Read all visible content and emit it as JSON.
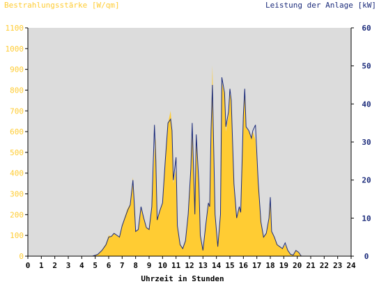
{
  "chart_data": {
    "type": "area",
    "left_axis_title": "Bestrahlungsstärke [W/qm]",
    "right_axis_title": "Leistung der Anlage [kW]",
    "xlabel": "Uhrzeit in Stunden",
    "xlim": [
      0,
      24
    ],
    "ylim_left": [
      0,
      1100
    ],
    "ylim_right": [
      0,
      60
    ],
    "x_ticks": [
      "0",
      "1",
      "2",
      "3",
      "4",
      "5",
      "6",
      "7",
      "8",
      "9",
      "10",
      "11",
      "12",
      "13",
      "14",
      "15",
      "16",
      "17",
      "18",
      "19",
      "20",
      "21",
      "22",
      "23",
      "24"
    ],
    "y_ticks_left": [
      "0",
      "100",
      "200",
      "300",
      "400",
      "500",
      "600",
      "700",
      "800",
      "900",
      "1000",
      "1100"
    ],
    "y_ticks_right": [
      "0",
      "10",
      "20",
      "30",
      "40",
      "50",
      "60"
    ],
    "grid": false,
    "colors": {
      "plot_background": "#dcdcdc",
      "irradiance_fill": "#ffcc33",
      "power_line": "#1a2a7a",
      "left_axis_text": "#ffcc33",
      "right_axis_text": "#1a2a7a",
      "axis": "#000000"
    },
    "series": [
      {
        "name": "Bestrahlungsstärke",
        "axis": "left",
        "style": "area",
        "x": [
          0,
          4.8,
          5.2,
          5.5,
          5.8,
          6.0,
          6.2,
          6.4,
          6.6,
          6.8,
          7.0,
          7.2,
          7.4,
          7.6,
          7.8,
          7.9,
          8.0,
          8.2,
          8.4,
          8.6,
          8.8,
          9.0,
          9.2,
          9.4,
          9.5,
          9.6,
          9.8,
          10.0,
          10.2,
          10.4,
          10.6,
          10.7,
          10.8,
          11.0,
          11.1,
          11.3,
          11.5,
          11.7,
          11.9,
          12.1,
          12.2,
          12.4,
          12.5,
          12.7,
          12.8,
          13.0,
          13.2,
          13.4,
          13.5,
          13.6,
          13.7,
          13.9,
          14.1,
          14.3,
          14.4,
          14.6,
          14.7,
          14.9,
          15.0,
          15.1,
          15.3,
          15.5,
          15.7,
          15.8,
          16.0,
          16.1,
          16.2,
          16.4,
          16.6,
          16.7,
          16.9,
          17.1,
          17.3,
          17.5,
          17.7,
          17.9,
          18.0,
          18.1,
          18.3,
          18.5,
          18.7,
          18.9,
          19.1,
          19.3,
          19.5,
          19.7,
          19.9,
          20.1,
          20.3,
          24
        ],
        "values": [
          0,
          0,
          10,
          30,
          60,
          100,
          95,
          110,
          100,
          90,
          150,
          190,
          230,
          250,
          380,
          260,
          120,
          130,
          230,
          180,
          140,
          130,
          240,
          500,
          570,
          180,
          220,
          260,
          460,
          640,
          700,
          610,
          350,
          420,
          150,
          60,
          40,
          80,
          200,
          420,
          600,
          200,
          560,
          350,
          100,
          30,
          150,
          260,
          240,
          600,
          920,
          200,
          50,
          200,
          840,
          780,
          600,
          680,
          780,
          760,
          350,
          180,
          240,
          210,
          680,
          800,
          620,
          600,
          570,
          600,
          560,
          360,
          170,
          90,
          110,
          180,
          270,
          120,
          90,
          60,
          45,
          35,
          55,
          25,
          10,
          5,
          30,
          20,
          0,
          0
        ]
      },
      {
        "name": "Leistung der Anlage",
        "axis": "right",
        "style": "line",
        "x": [
          0,
          4.8,
          5.2,
          5.5,
          5.8,
          6.0,
          6.2,
          6.4,
          6.6,
          6.8,
          7.0,
          7.2,
          7.4,
          7.6,
          7.8,
          7.9,
          8.0,
          8.2,
          8.4,
          8.6,
          8.8,
          9.0,
          9.2,
          9.4,
          9.5,
          9.6,
          9.8,
          10.0,
          10.2,
          10.4,
          10.6,
          10.7,
          10.8,
          11.0,
          11.1,
          11.3,
          11.5,
          11.7,
          11.9,
          12.1,
          12.2,
          12.4,
          12.5,
          12.7,
          12.8,
          13.0,
          13.2,
          13.4,
          13.5,
          13.6,
          13.7,
          13.9,
          14.1,
          14.3,
          14.4,
          14.6,
          14.7,
          14.9,
          15.0,
          15.1,
          15.3,
          15.5,
          15.7,
          15.8,
          16.0,
          16.1,
          16.2,
          16.4,
          16.6,
          16.7,
          16.9,
          17.1,
          17.3,
          17.5,
          17.7,
          17.9,
          18.0,
          18.1,
          18.3,
          18.5,
          18.7,
          18.9,
          19.1,
          19.3,
          19.5,
          19.7,
          19.9,
          20.1,
          20.3,
          24
        ],
        "values": [
          0,
          0,
          0.5,
          1.5,
          3,
          5,
          5.2,
          6,
          5.5,
          5,
          8,
          10,
          12,
          13.5,
          20,
          14,
          6.5,
          7,
          13,
          10,
          7.5,
          7,
          13,
          34.5,
          25,
          9.5,
          12,
          14,
          25,
          35,
          36,
          33,
          20,
          26,
          8,
          3,
          2,
          4,
          11,
          23,
          35,
          11,
          32,
          19,
          5.5,
          1.5,
          8,
          14,
          13,
          33,
          45,
          11,
          2.5,
          11,
          47,
          43,
          34,
          38,
          44,
          41,
          19,
          10,
          13,
          11.5,
          37,
          44,
          34,
          33,
          31,
          33,
          34.5,
          19.5,
          9,
          5,
          6,
          10,
          15.5,
          6.5,
          5,
          3,
          2.5,
          2,
          3.5,
          1.5,
          0.5,
          0.3,
          1.5,
          1,
          0,
          0
        ]
      }
    ]
  }
}
